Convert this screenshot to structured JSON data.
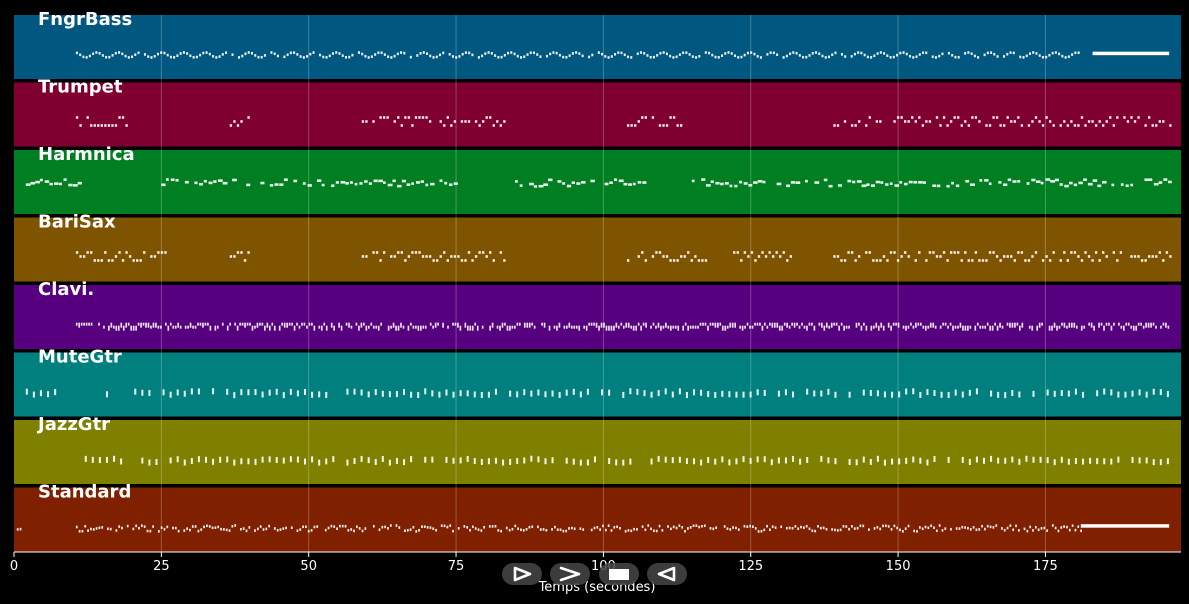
{
  "chart_data": {
    "type": "piano-roll",
    "xlabel": "Temps (secondes)",
    "xlim": [
      0,
      198
    ],
    "xticks": [
      0,
      25,
      50,
      75,
      100,
      125,
      150,
      175
    ],
    "grid": true,
    "tracks": [
      {
        "name": "FngrBass",
        "color": "#00577f",
        "active": [
          [
            10.5,
            181
          ]
        ],
        "sustain": [
          [
            183,
            196
          ]
        ],
        "pattern": "continuous-wavy"
      },
      {
        "name": "Trumpet",
        "color": "#7f0030",
        "active": [
          [
            10.5,
            19
          ],
          [
            36,
            40
          ],
          [
            59,
            83.5
          ],
          [
            104,
            113
          ],
          [
            139,
            196
          ]
        ],
        "pattern": "phrases"
      },
      {
        "name": "Harmnica",
        "color": "#007f22",
        "active": [
          [
            2,
            11
          ],
          [
            25,
            75
          ],
          [
            85,
            107
          ],
          [
            115,
            196
          ]
        ],
        "pattern": "melody"
      },
      {
        "name": "BariSax",
        "color": "#7f5400",
        "active": [
          [
            10.5,
            26
          ],
          [
            36,
            40
          ],
          [
            59,
            83.5
          ],
          [
            104,
            118
          ],
          [
            122,
            132
          ],
          [
            139,
            196
          ]
        ],
        "pattern": "phrases"
      },
      {
        "name": "Clavi.",
        "color": "#57007f",
        "active": [
          [
            10.5,
            196
          ]
        ],
        "pattern": "dense-rhythm"
      },
      {
        "name": "MuteGtr",
        "color": "#007f7f",
        "active": [
          [
            2,
            8
          ],
          [
            12,
            196
          ]
        ],
        "pattern": "chords"
      },
      {
        "name": "JazzGtr",
        "color": "#7f7f00",
        "active": [
          [
            12,
            196
          ]
        ],
        "pattern": "chords"
      },
      {
        "name": "Standard",
        "color": "#7f2000",
        "active": [
          [
            0,
            1
          ],
          [
            10.5,
            181
          ]
        ],
        "sustain": [
          [
            181,
            196
          ]
        ],
        "pattern": "drums"
      }
    ]
  },
  "controls": [
    {
      "name": "play-icon",
      "icon": "play"
    },
    {
      "name": "forward-icon",
      "icon": "chevron-right"
    },
    {
      "name": "stop-icon",
      "icon": "stop"
    },
    {
      "name": "rewind-icon",
      "icon": "play-back"
    }
  ]
}
